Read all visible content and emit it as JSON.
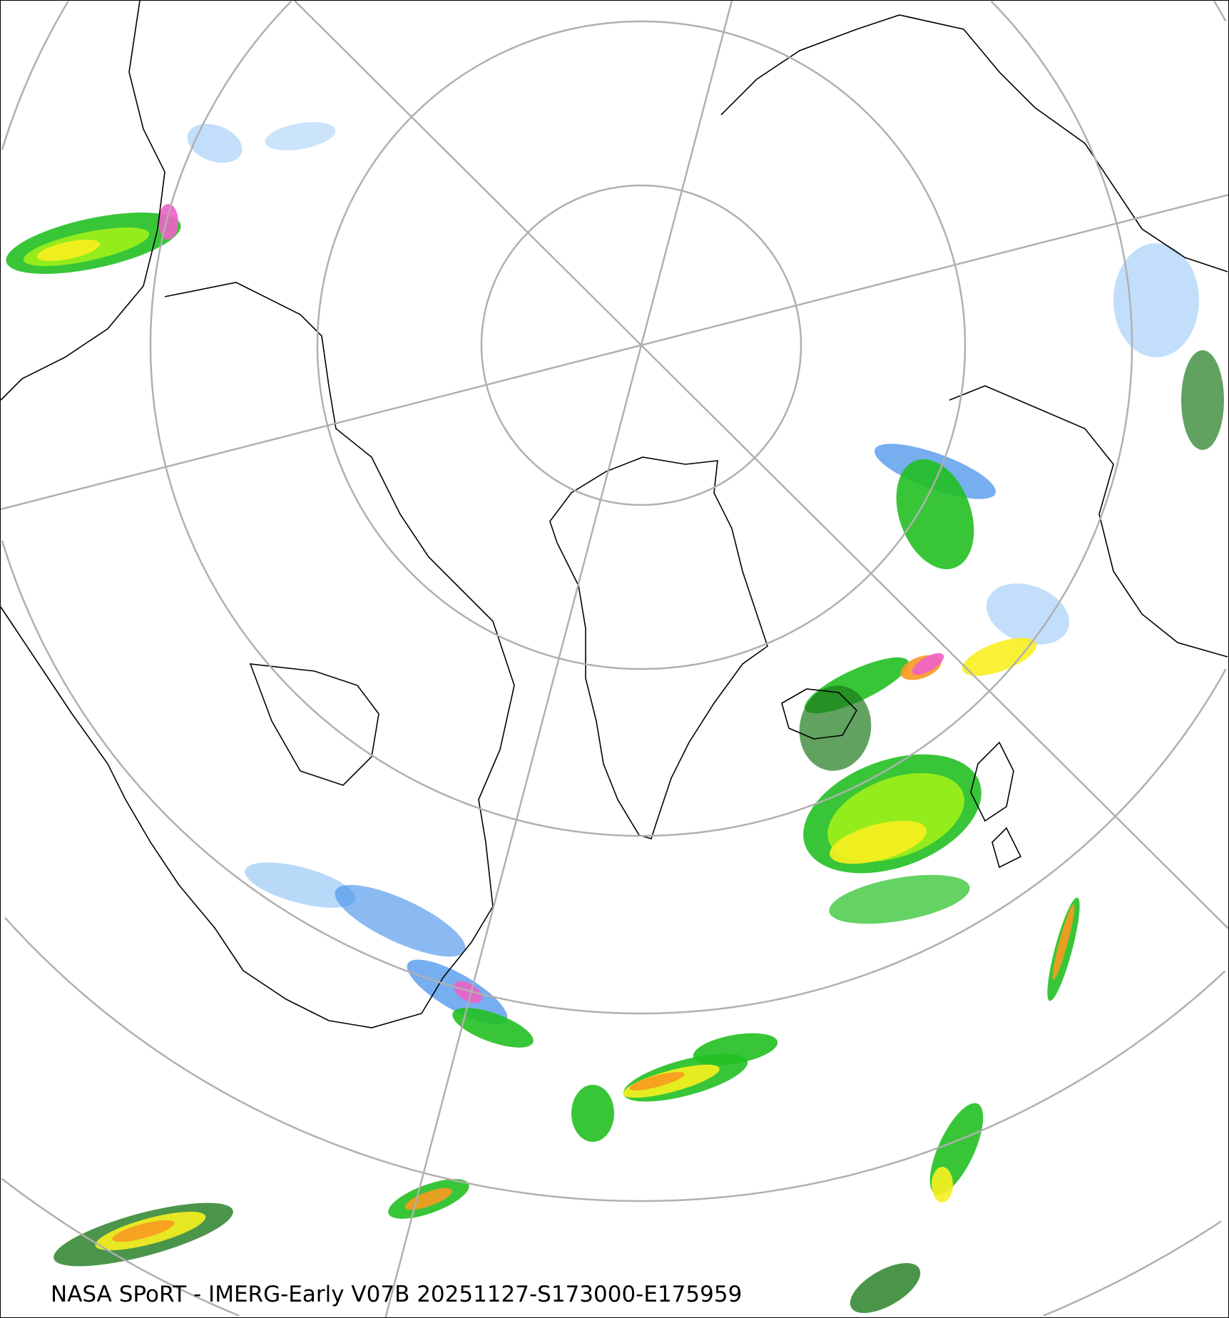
{
  "map": {
    "caption": "NASA SPoRT - IMERG-Early V07B 20251127-S173000-E175959",
    "projection": "north polar stereographic",
    "product": "IMERG-Early V07B precipitation",
    "colors": {
      "graticule": "#b0b0b0",
      "coastline": "#000000",
      "light_blue": "#a8d0f8",
      "blue": "#3c8ce8",
      "dark_green": "#1e7a1e",
      "green": "#22c022",
      "lime": "#9ef01a",
      "yellow": "#f8f020",
      "orange": "#f89a20",
      "red": "#e82020",
      "magenta": "#f060c8"
    }
  }
}
